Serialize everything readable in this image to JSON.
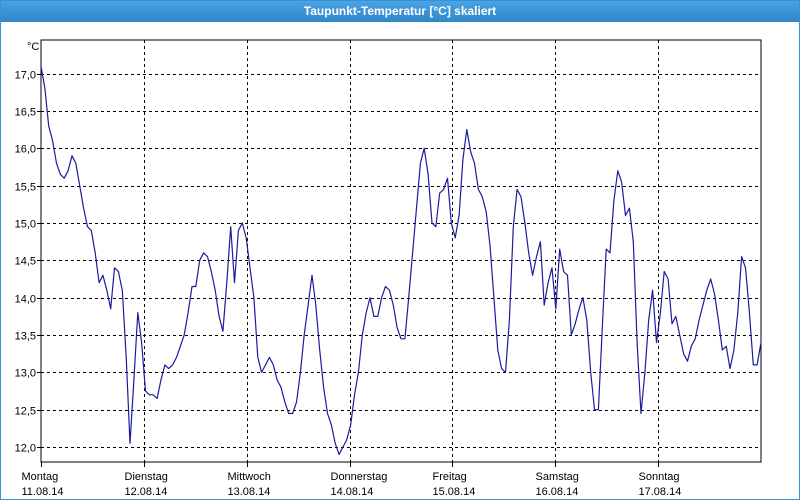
{
  "window": {
    "title": "Taupunkt-Temperatur [°C] skaliert"
  },
  "colors": {
    "titlebar": "#3a8fd0",
    "series": "#1c1c9c",
    "grid": "#000000"
  },
  "chart_data": {
    "type": "line",
    "title": "Taupunkt-Temperatur [°C] skaliert",
    "ylabel": "°C",
    "xlabel": "",
    "ylim": [
      11.8,
      17.45
    ],
    "yticks": [
      12.0,
      12.5,
      13.0,
      13.5,
      14.0,
      14.5,
      15.0,
      15.5,
      16.0,
      16.5,
      17.0
    ],
    "ytick_labels": [
      "12,0",
      "12,5",
      "13,0",
      "13,5",
      "14,0",
      "14,5",
      "15,0",
      "15,5",
      "16,0",
      "16,5",
      "17,0"
    ],
    "xlim": [
      0,
      7
    ],
    "day_labels": [
      {
        "day": "Montag",
        "date": "11.08.14"
      },
      {
        "day": "Dienstag",
        "date": "12.08.14"
      },
      {
        "day": "Mittwoch",
        "date": "13.08.14"
      },
      {
        "day": "Donnerstag",
        "date": "14.08.14"
      },
      {
        "day": "Freitag",
        "date": "15.08.14"
      },
      {
        "day": "Samstag",
        "date": "16.08.14"
      },
      {
        "day": "Sonntag",
        "date": "17.08.14"
      }
    ],
    "grid": true,
    "series": [
      {
        "values": [
          17.1,
          16.8,
          16.3,
          16.1,
          15.8,
          15.65,
          15.6,
          15.7,
          15.9,
          15.8,
          15.5,
          15.2,
          14.95,
          14.9,
          14.6,
          14.2,
          14.3,
          14.1,
          13.85,
          14.4,
          14.35,
          14.1,
          13.2,
          12.05,
          12.9,
          13.8,
          13.4,
          12.75,
          12.7,
          12.7,
          12.65,
          12.9,
          13.1,
          13.05,
          13.1,
          13.2,
          13.35,
          13.5,
          13.8,
          14.15,
          14.15,
          14.5,
          14.6,
          14.55,
          14.35,
          14.1,
          13.75,
          13.55,
          14.2,
          14.95,
          14.2,
          14.9,
          15.0,
          14.8,
          14.4,
          14.0,
          13.2,
          13.0,
          13.1,
          13.2,
          13.1,
          12.9,
          12.8,
          12.6,
          12.45,
          12.45,
          12.6,
          13.0,
          13.5,
          13.9,
          14.3,
          13.9,
          13.3,
          12.8,
          12.45,
          12.3,
          12.05,
          11.9,
          12.0,
          12.1,
          12.3,
          12.7,
          13.0,
          13.5,
          13.8,
          14.0,
          13.75,
          13.75,
          14.0,
          14.15,
          14.1,
          13.9,
          13.6,
          13.45,
          13.45,
          14.0,
          14.6,
          15.2,
          15.8,
          16.0,
          15.65,
          15.0,
          14.95,
          15.4,
          15.45,
          15.6,
          15.0,
          14.8,
          15.1,
          15.85,
          16.25,
          15.95,
          15.8,
          15.45,
          15.35,
          15.15,
          14.7,
          14.0,
          13.3,
          13.05,
          13.0,
          13.7,
          14.95,
          15.45,
          15.35,
          15.0,
          14.6,
          14.3,
          14.55,
          14.75,
          13.9,
          14.2,
          14.4,
          13.85,
          14.65,
          14.35,
          14.3,
          13.5,
          13.65,
          13.85,
          14.0,
          13.7,
          13.0,
          12.5,
          12.5,
          13.6,
          14.65,
          14.6,
          15.3,
          15.7,
          15.55,
          15.1,
          15.2,
          14.75,
          13.4,
          12.45,
          13.0,
          13.7,
          14.1,
          13.4,
          13.8,
          14.35,
          14.25,
          13.65,
          13.75,
          13.5,
          13.25,
          13.15,
          13.35,
          13.45,
          13.7,
          13.9,
          14.1,
          14.25,
          14.05,
          13.7,
          13.3,
          13.35,
          13.05,
          13.3,
          13.8,
          14.55,
          14.4,
          13.8,
          13.1,
          13.1,
          13.4
        ]
      }
    ]
  }
}
